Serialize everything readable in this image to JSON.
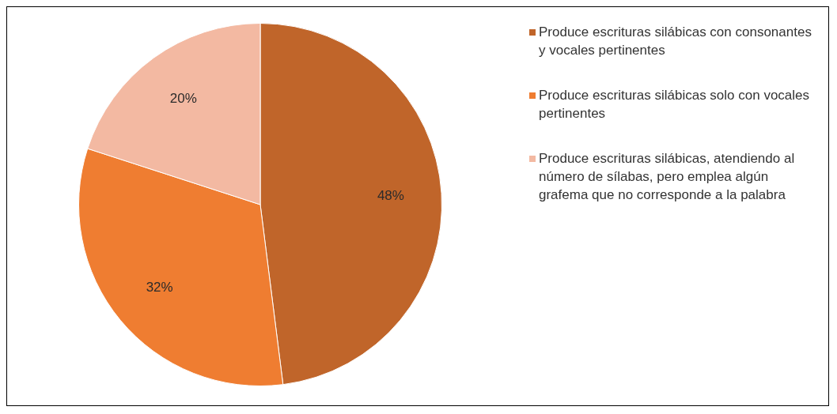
{
  "chart_data": {
    "type": "pie",
    "categories": [
      "Produce escrituras silábicas con consonantes y vocales pertinentes",
      "Produce escrituras silábicas solo con vocales pertinentes",
      "Produce escrituras silábicas, atendiendo al número de sílabas, pero emplea algún grafema que no corresponde a la palabra"
    ],
    "values": [
      48,
      32,
      20
    ],
    "colors": [
      "#c0652a",
      "#ef7d31",
      "#f3b9a2"
    ],
    "value_labels": [
      "48%",
      "32%",
      "20%"
    ],
    "legend": "right"
  }
}
